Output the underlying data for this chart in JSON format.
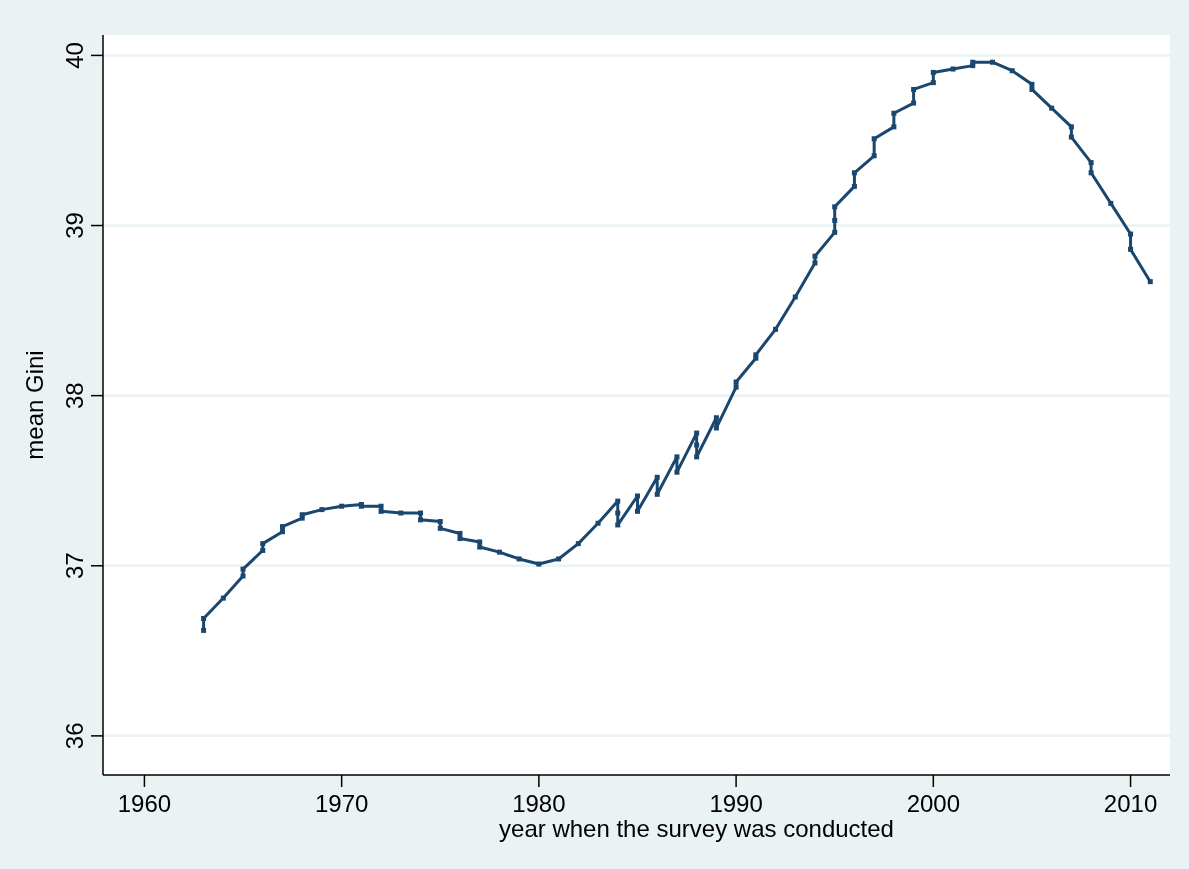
{
  "chart_data": {
    "type": "line",
    "xlabel": "year when the survey was conducted",
    "ylabel": "mean Gini",
    "x": [
      1963,
      1963,
      1964,
      1965,
      1965,
      1966,
      1966,
      1967,
      1967,
      1968,
      1968,
      1969,
      1970,
      1971,
      1971,
      1972,
      1972,
      1973,
      1974,
      1974,
      1975,
      1975,
      1976,
      1976,
      1977,
      1977,
      1978,
      1979,
      1980,
      1981,
      1982,
      1983,
      1984,
      1984,
      1984,
      1985,
      1985,
      1986,
      1986,
      1987,
      1987,
      1988,
      1988,
      1988,
      1989,
      1989,
      1990,
      1990,
      1991,
      1991,
      1992,
      1993,
      1994,
      1994,
      1995,
      1995,
      1995,
      1996,
      1996,
      1997,
      1997,
      1998,
      1998,
      1999,
      1999,
      2000,
      2000,
      2001,
      2002,
      2002,
      2003,
      2004,
      2005,
      2005,
      2006,
      2007,
      2007,
      2008,
      2008,
      2009,
      2010,
      2010,
      2011
    ],
    "values": [
      36.62,
      36.69,
      36.81,
      36.94,
      36.98,
      37.09,
      37.13,
      37.2,
      37.23,
      37.28,
      37.3,
      37.33,
      37.35,
      37.36,
      37.35,
      37.35,
      37.32,
      37.31,
      37.31,
      37.27,
      37.26,
      37.22,
      37.19,
      37.16,
      37.14,
      37.11,
      37.08,
      37.04,
      37.01,
      37.04,
      37.13,
      37.25,
      37.38,
      37.31,
      37.24,
      37.41,
      37.32,
      37.52,
      37.42,
      37.64,
      37.55,
      37.78,
      37.71,
      37.64,
      37.87,
      37.81,
      38.05,
      38.08,
      38.22,
      38.24,
      38.39,
      38.58,
      38.78,
      38.82,
      38.96,
      39.03,
      39.11,
      39.23,
      39.31,
      39.41,
      39.51,
      39.58,
      39.66,
      39.72,
      39.8,
      39.84,
      39.9,
      39.92,
      39.94,
      39.96,
      39.96,
      39.91,
      39.83,
      39.8,
      39.69,
      39.58,
      39.52,
      39.37,
      39.31,
      39.13,
      38.95,
      38.86,
      38.67
    ],
    "color": "#1a476f",
    "marker": "square",
    "line_style": "solid",
    "xlim": [
      1957.9,
      2012
    ],
    "xticks": [
      1960,
      1970,
      1980,
      1990,
      2000,
      2010
    ],
    "ylim": [
      35.77,
      40.12
    ],
    "yticks": [
      36,
      37,
      38,
      39,
      40
    ],
    "grid": "y"
  }
}
